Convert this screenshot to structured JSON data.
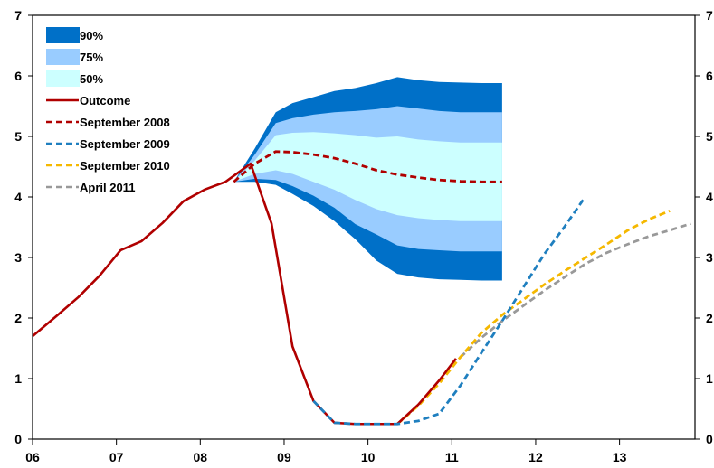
{
  "chart_data": {
    "type": "line",
    "title": "",
    "xlabel": "",
    "ylabel": "",
    "x_tick_labels": [
      "06",
      "07",
      "08",
      "09",
      "10",
      "11",
      "12",
      "13"
    ],
    "y_tick_labels": [
      "0",
      "1",
      "2",
      "3",
      "4",
      "5",
      "6",
      "7"
    ],
    "xlim": [
      2006.0,
      2013.9
    ],
    "ylim": [
      0,
      7
    ],
    "grid": false,
    "legend_placement": "top-left",
    "legend": [
      {
        "label": "90%",
        "kind": "band",
        "color": "#0070c8"
      },
      {
        "label": "75%",
        "kind": "band",
        "color": "#99ccff"
      },
      {
        "label": "50%",
        "kind": "band",
        "color": "#ccffff"
      },
      {
        "label": "Outcome",
        "kind": "solid",
        "color": "#b00000"
      },
      {
        "label": "September 2008",
        "kind": "dash",
        "color": "#b00000"
      },
      {
        "label": "September 2009",
        "kind": "dash",
        "color": "#1f7fbf"
      },
      {
        "label": "September 2010",
        "kind": "dash",
        "color": "#f5b800"
      },
      {
        "label": "April 2011",
        "kind": "dash",
        "color": "#999999"
      }
    ],
    "fan_chart": {
      "x": [
        2008.4,
        2008.65,
        2008.9,
        2009.1,
        2009.35,
        2009.6,
        2009.85,
        2010.1,
        2010.35,
        2010.6,
        2010.85,
        2011.1,
        2011.35,
        2011.6
      ],
      "bands": {
        "90": {
          "upper": [
            4.25,
            4.8,
            5.4,
            5.55,
            5.65,
            5.75,
            5.8,
            5.88,
            5.98,
            5.93,
            5.9,
            5.89,
            5.88,
            5.88
          ],
          "lower": [
            4.25,
            4.25,
            4.2,
            4.05,
            3.85,
            3.6,
            3.3,
            2.95,
            2.73,
            2.67,
            2.64,
            2.63,
            2.62,
            2.62
          ]
        },
        "75": {
          "upper": [
            4.25,
            4.7,
            5.22,
            5.3,
            5.36,
            5.4,
            5.42,
            5.45,
            5.5,
            5.46,
            5.42,
            5.4,
            5.4,
            5.4
          ],
          "lower": [
            4.25,
            4.3,
            4.28,
            4.18,
            4.02,
            3.82,
            3.55,
            3.38,
            3.2,
            3.14,
            3.12,
            3.1,
            3.1,
            3.1
          ]
        },
        "50": {
          "upper": [
            4.25,
            4.6,
            5.02,
            5.06,
            5.07,
            5.05,
            5.02,
            4.98,
            5.0,
            4.95,
            4.92,
            4.9,
            4.9,
            4.9
          ],
          "lower": [
            4.25,
            4.38,
            4.44,
            4.38,
            4.25,
            4.12,
            3.95,
            3.8,
            3.7,
            3.65,
            3.62,
            3.6,
            3.6,
            3.6
          ]
        }
      }
    },
    "series": [
      {
        "name": "Outcome",
        "x": [
          2006.0,
          2006.3,
          2006.55,
          2006.8,
          2007.05,
          2007.3,
          2007.55,
          2007.8,
          2008.05,
          2008.3,
          2008.6,
          2008.85,
          2009.1,
          2009.35,
          2009.6,
          2009.85,
          2010.1,
          2010.35,
          2010.6,
          2010.85,
          2011.05
        ],
        "y": [
          1.7,
          2.05,
          2.35,
          2.7,
          3.12,
          3.27,
          3.57,
          3.93,
          4.12,
          4.25,
          4.55,
          3.56,
          1.53,
          0.63,
          0.27,
          0.25,
          0.25,
          0.25,
          0.57,
          0.97,
          1.33
        ]
      },
      {
        "name": "September 2008",
        "x": [
          2008.4,
          2008.65,
          2008.9,
          2009.1,
          2009.35,
          2009.6,
          2009.85,
          2010.1,
          2010.35,
          2010.6,
          2010.85,
          2011.1,
          2011.35,
          2011.6
        ],
        "y": [
          4.25,
          4.55,
          4.75,
          4.74,
          4.7,
          4.64,
          4.55,
          4.44,
          4.37,
          4.32,
          4.28,
          4.26,
          4.25,
          4.25
        ]
      },
      {
        "name": "September 2009",
        "x": [
          2009.35,
          2009.6,
          2009.85,
          2010.1,
          2010.35,
          2010.6,
          2010.85,
          2011.1,
          2011.35,
          2011.6,
          2011.85,
          2012.1,
          2012.35,
          2012.58
        ],
        "y": [
          0.63,
          0.27,
          0.25,
          0.25,
          0.25,
          0.3,
          0.42,
          0.88,
          1.42,
          1.95,
          2.5,
          3.05,
          3.52,
          3.98
        ]
      },
      {
        "name": "September 2010",
        "x": [
          2010.35,
          2010.6,
          2010.85,
          2011.1,
          2011.35,
          2011.6,
          2011.85,
          2012.1,
          2012.35,
          2012.6,
          2012.85,
          2013.1,
          2013.35,
          2013.6
        ],
        "y": [
          0.25,
          0.55,
          0.92,
          1.35,
          1.75,
          2.05,
          2.3,
          2.55,
          2.78,
          3.0,
          3.22,
          3.45,
          3.63,
          3.77
        ]
      },
      {
        "name": "April 2011",
        "x": [
          2011.1,
          2011.35,
          2011.6,
          2011.85,
          2012.1,
          2012.35,
          2012.6,
          2012.85,
          2013.1,
          2013.35,
          2013.6,
          2013.85
        ],
        "y": [
          1.35,
          1.67,
          1.95,
          2.2,
          2.45,
          2.68,
          2.9,
          3.08,
          3.22,
          3.35,
          3.45,
          3.56
        ]
      }
    ]
  }
}
